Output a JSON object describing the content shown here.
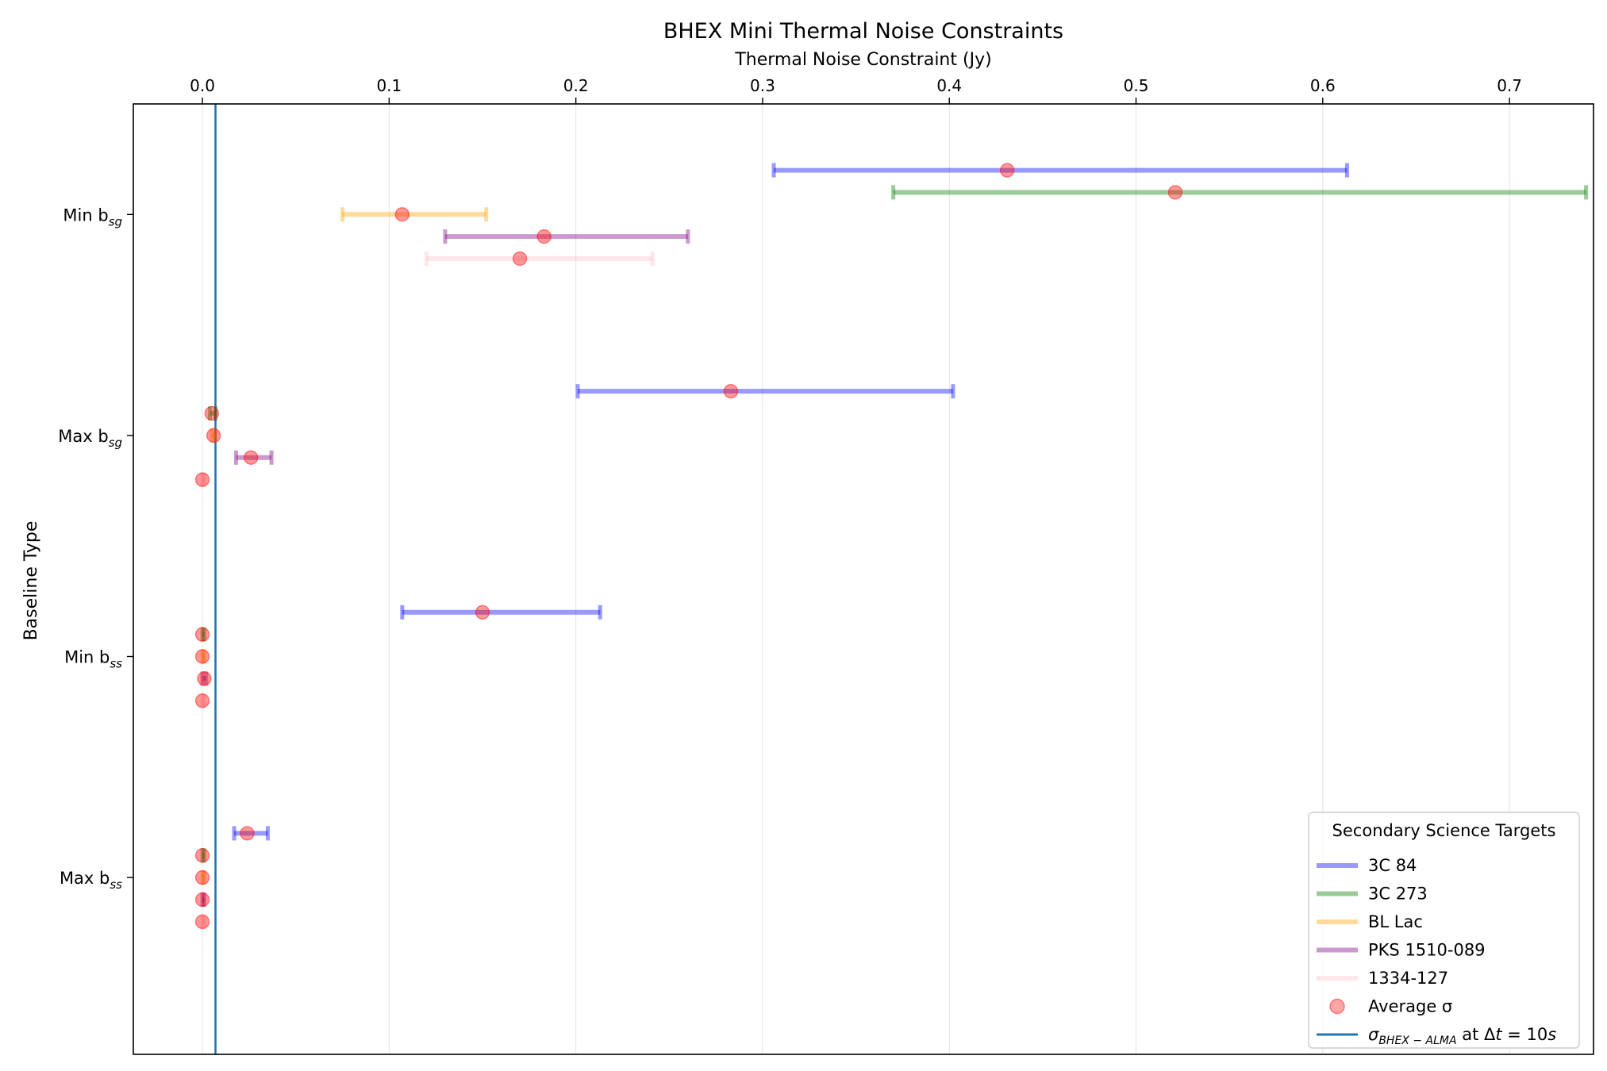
{
  "chart_data": {
    "type": "errorbar",
    "title": "BHEX Mini Thermal Noise Constraints",
    "xlabel": "Thermal Noise Constraint (Jy)",
    "ylabel": "Baseline Type",
    "xlim": [
      -0.037,
      0.745
    ],
    "x_ticks": [
      0.0,
      0.1,
      0.2,
      0.3,
      0.4,
      0.5,
      0.6,
      0.7
    ],
    "x_tick_labels": [
      "0.0",
      "0.1",
      "0.2",
      "0.3",
      "0.4",
      "0.5",
      "0.6",
      "0.7"
    ],
    "categories": [
      {
        "label": "Min b",
        "sub": "sg"
      },
      {
        "label": "Max b",
        "sub": "sg"
      },
      {
        "label": "Min b",
        "sub": "ss"
      },
      {
        "label": "Max b",
        "sub": "ss"
      }
    ],
    "reference_line": {
      "value": 0.007,
      "color": "#1f77b4"
    },
    "series": [
      {
        "name": "3C 84",
        "color": "#0000ff",
        "offset": 0.2,
        "low": [
          0.306,
          0.201,
          0.107,
          0.017
        ],
        "avg": [
          0.431,
          0.283,
          0.15,
          0.024
        ],
        "high": [
          0.613,
          0.402,
          0.213,
          0.035
        ]
      },
      {
        "name": "3C 273",
        "color": "#008000",
        "offset": 0.1,
        "low": [
          0.37,
          0.004,
          0.0,
          0.0
        ],
        "avg": [
          0.521,
          0.005,
          0.0,
          0.0
        ],
        "high": [
          0.741,
          0.007,
          0.001,
          0.001
        ]
      },
      {
        "name": "BL Lac",
        "color": "#ffa500",
        "offset": 0.0,
        "low": [
          0.075,
          0.005,
          0.0,
          0.0
        ],
        "avg": [
          0.107,
          0.006,
          0.0,
          0.0
        ],
        "high": [
          0.152,
          0.007,
          0.001,
          0.001
        ]
      },
      {
        "name": "PKS 1510-089",
        "color": "#800080",
        "offset": -0.1,
        "low": [
          0.13,
          0.018,
          0.0,
          0.0
        ],
        "avg": [
          0.183,
          0.026,
          0.001,
          0.0
        ],
        "high": [
          0.26,
          0.037,
          0.002,
          0.001
        ]
      },
      {
        "name": "1334-127",
        "color": "#ffc0cb",
        "offset": -0.2,
        "low": [
          0.12,
          0.0,
          0.0,
          0.0
        ],
        "avg": [
          0.17,
          0.0,
          0.0,
          0.0
        ],
        "high": [
          0.241,
          0.001,
          0.001,
          0.001
        ]
      }
    ],
    "legend": {
      "title": "Secondary Science Targets",
      "position": "lower-right",
      "entries": [
        "3C 84",
        "3C 273",
        "BL Lac",
        "PKS 1510-089",
        "1334-127",
        "Average σ"
      ],
      "ref_entry": {
        "sigma": "σ",
        "sub": "BHEX − ALMA",
        "text_mid": " at Δ",
        "t": "t",
        "eq": " = 10",
        "s": "s"
      }
    },
    "avg_marker_color": "#ff0000"
  }
}
